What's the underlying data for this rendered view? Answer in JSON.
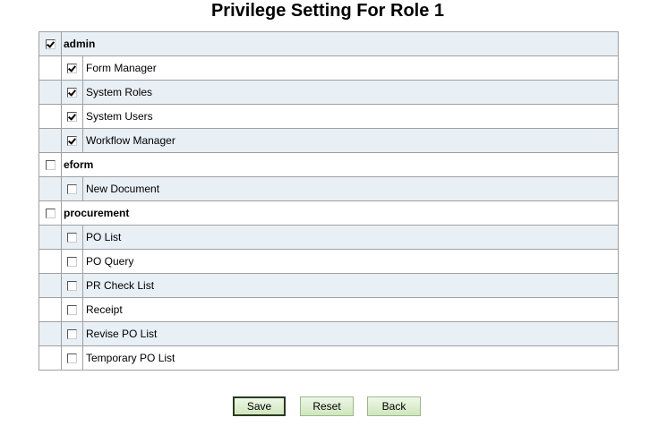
{
  "title": "Privilege Setting For Role 1",
  "groups": [
    {
      "label": "admin",
      "checked": true,
      "items": [
        {
          "label": "Form Manager",
          "checked": true
        },
        {
          "label": "System Roles",
          "checked": true
        },
        {
          "label": "System Users",
          "checked": true
        },
        {
          "label": "Workflow Manager",
          "checked": true
        }
      ]
    },
    {
      "label": "eform",
      "checked": false,
      "items": [
        {
          "label": "New Document",
          "checked": false
        }
      ]
    },
    {
      "label": "procurement",
      "checked": false,
      "items": [
        {
          "label": "PO List",
          "checked": false
        },
        {
          "label": "PO Query",
          "checked": false
        },
        {
          "label": "PR Check List",
          "checked": false
        },
        {
          "label": "Receipt",
          "checked": false
        },
        {
          "label": "Revise PO List",
          "checked": false
        },
        {
          "label": "Temporary PO List",
          "checked": false
        }
      ]
    }
  ],
  "buttons": {
    "save": "Save",
    "reset": "Reset",
    "back": "Back"
  }
}
